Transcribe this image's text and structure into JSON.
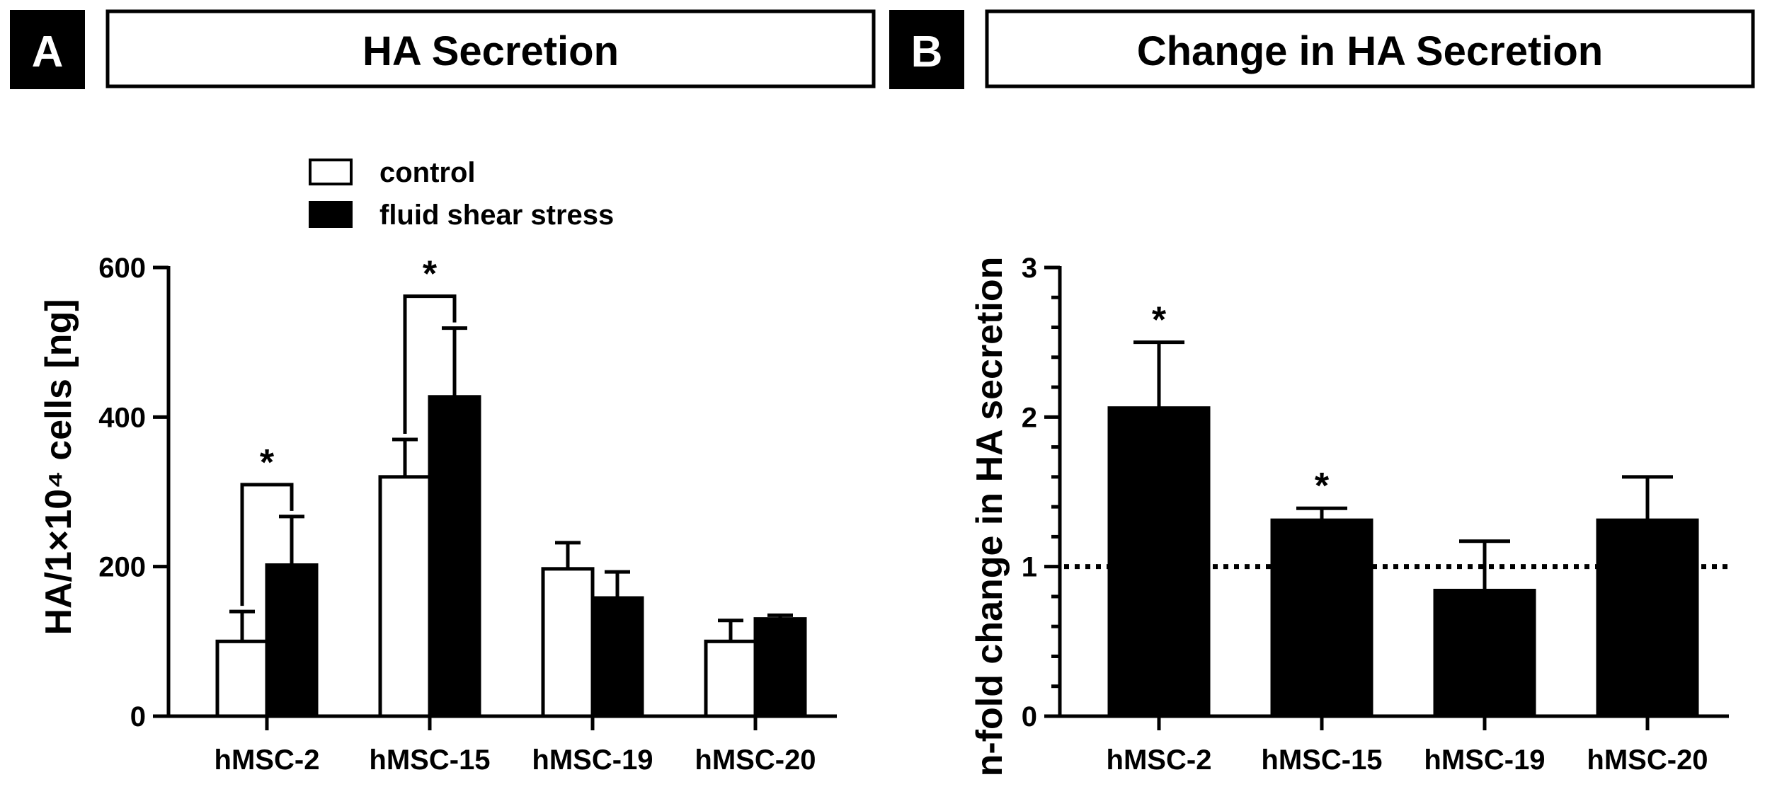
{
  "chart_data": [
    {
      "panel": "A",
      "type": "bar",
      "title": "HA Secretion",
      "ylabel": "HA/1×10⁴ cells [ng]",
      "xlabel": "",
      "ylim": [
        0,
        600
      ],
      "yticks": [
        0,
        200,
        400,
        600
      ],
      "categories": [
        "hMSC-2",
        "hMSC-15",
        "hMSC-19",
        "hMSC-20"
      ],
      "series": [
        {
          "name": "control",
          "color": "#ffffff",
          "values": [
            100,
            320,
            197,
            100
          ],
          "errors": [
            40,
            50,
            35,
            28
          ]
        },
        {
          "name": "fluid shear stress",
          "color": "#000000",
          "values": [
            202,
            427,
            158,
            130
          ],
          "errors": [
            65,
            92,
            35,
            5
          ]
        }
      ],
      "significance": [
        {
          "category_index": 0,
          "label": "*"
        },
        {
          "category_index": 1,
          "label": "*"
        }
      ],
      "legend_position": "top-center",
      "grid": false
    },
    {
      "panel": "B",
      "type": "bar",
      "title": "Change in HA Secretion",
      "ylabel": "n-fold change in HA secretion",
      "xlabel": "",
      "ylim": [
        0,
        3
      ],
      "yticks": [
        0,
        1,
        2,
        3
      ],
      "categories": [
        "hMSC-2",
        "hMSC-15",
        "hMSC-19",
        "hMSC-20"
      ],
      "series": [
        {
          "color": "#000000",
          "values": [
            2.06,
            1.31,
            0.84,
            1.31
          ],
          "errors": [
            0.44,
            0.08,
            0.33,
            0.29
          ]
        }
      ],
      "significance": [
        {
          "category_index": 0,
          "label": "*"
        },
        {
          "category_index": 1,
          "label": "*"
        }
      ],
      "reference_line": 1,
      "grid": false
    }
  ]
}
